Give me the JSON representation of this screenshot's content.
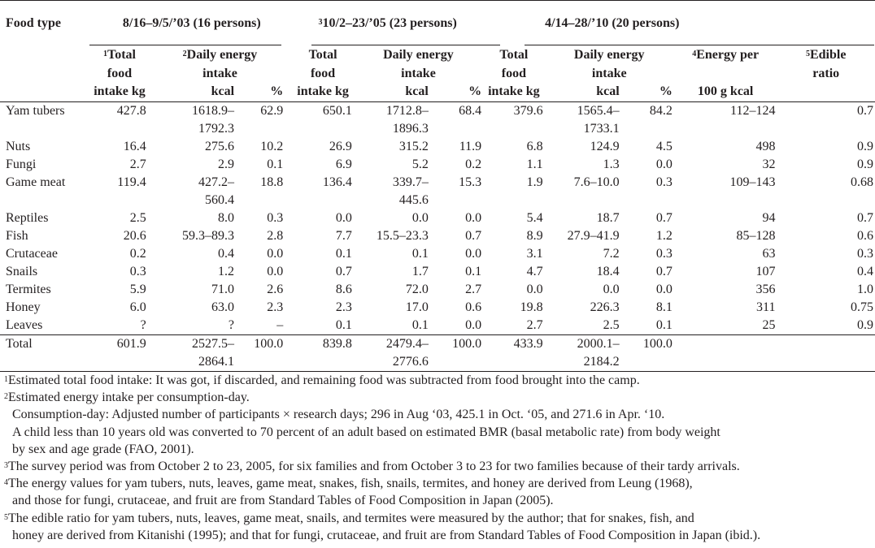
{
  "header": {
    "food_type": "Food type",
    "period1": "8/16–9/5/’03 (16 persons)",
    "period2_sup": "3",
    "period2": "10/2–23/’05 (23 persons)",
    "period3": "4/14–28/’10 (20 persons)",
    "total_l1": "Total",
    "total_l2": "food",
    "total_l3": "intake kg",
    "total_sup": "1",
    "energy_l1": "Daily energy",
    "energy_l2": "intake",
    "energy_sup": "2",
    "kcal": "kcal",
    "pct": "%",
    "energy100_sup": "4",
    "energy100_l1": "Energy per",
    "energy100_l3": "100 g kcal",
    "edible_sup": "5",
    "edible_l1": "Edible",
    "edible_l2": "ratio"
  },
  "rows": [
    {
      "food": "Yam tubers",
      "a_total": "427.8",
      "a_kcal": "1618.9–",
      "a_kcal2": "1792.3",
      "a_pct": "62.9",
      "b_total": "650.1",
      "b_kcal": "1712.8–",
      "b_kcal2": "1896.3",
      "b_pct": "68.4",
      "c_total": "379.6",
      "c_kcal": "1565.4–",
      "c_kcal2": "1733.1",
      "c_pct": "84.2",
      "energy": "112–124",
      "edible": "0.7"
    },
    {
      "food": "Nuts",
      "a_total": "16.4",
      "a_kcal": "275.6",
      "a_pct": "10.2",
      "b_total": "26.9",
      "b_kcal": "315.2",
      "b_pct": "11.9",
      "c_total": "6.8",
      "c_kcal": "124.9",
      "c_pct": "4.5",
      "energy": "498",
      "edible": "0.9"
    },
    {
      "food": "Fungi",
      "a_total": "2.7",
      "a_kcal": "2.9",
      "a_pct": "0.1",
      "b_total": "6.9",
      "b_kcal": "5.2",
      "b_pct": "0.2",
      "c_total": "1.1",
      "c_kcal": "1.3",
      "c_pct": "0.0",
      "energy": "32",
      "edible": "0.9"
    },
    {
      "food": "Game meat",
      "a_total": "119.4",
      "a_kcal": "427.2–",
      "a_kcal2": "560.4",
      "a_pct": "18.8",
      "b_total": "136.4",
      "b_kcal": "339.7–",
      "b_kcal2": "445.6",
      "b_pct": "15.3",
      "c_total": "1.9",
      "c_kcal": "7.6–10.0",
      "c_pct": "0.3",
      "energy": "109–143",
      "edible": "0.68"
    },
    {
      "food": "Reptiles",
      "a_total": "2.5",
      "a_kcal": "8.0",
      "a_pct": "0.3",
      "b_total": "0.0",
      "b_kcal": "0.0",
      "b_pct": "0.0",
      "c_total": "5.4",
      "c_kcal": "18.7",
      "c_pct": "0.7",
      "energy": "94",
      "edible": "0.7"
    },
    {
      "food": "Fish",
      "a_total": "20.6",
      "a_kcal": "59.3–89.3",
      "a_pct": "2.8",
      "b_total": "7.7",
      "b_kcal": "15.5–23.3",
      "b_pct": "0.7",
      "c_total": "8.9",
      "c_kcal": "27.9–41.9",
      "c_pct": "1.2",
      "energy": "85–128",
      "edible": "0.6"
    },
    {
      "food": "Crutaceae",
      "a_total": "0.2",
      "a_kcal": "0.4",
      "a_pct": "0.0",
      "b_total": "0.1",
      "b_kcal": "0.1",
      "b_pct": "0.0",
      "c_total": "3.1",
      "c_kcal": "7.2",
      "c_pct": "0.3",
      "energy": "63",
      "edible": "0.3"
    },
    {
      "food": "Snails",
      "a_total": "0.3",
      "a_kcal": "1.2",
      "a_pct": "0.0",
      "b_total": "0.7",
      "b_kcal": "1.7",
      "b_pct": "0.1",
      "c_total": "4.7",
      "c_kcal": "18.4",
      "c_pct": "0.7",
      "energy": "107",
      "edible": "0.4"
    },
    {
      "food": "Termites",
      "a_total": "5.9",
      "a_kcal": "71.0",
      "a_pct": "2.6",
      "b_total": "8.6",
      "b_kcal": "72.0",
      "b_pct": "2.7",
      "c_total": "0.0",
      "c_kcal": "0.0",
      "c_pct": "0.0",
      "energy": "356",
      "edible": "1.0"
    },
    {
      "food": "Honey",
      "a_total": "6.0",
      "a_kcal": "63.0",
      "a_pct": "2.3",
      "b_total": "2.3",
      "b_kcal": "17.0",
      "b_pct": "0.6",
      "c_total": "19.8",
      "c_kcal": "226.3",
      "c_pct": "8.1",
      "energy": "311",
      "edible": "0.75"
    },
    {
      "food": "Leaves",
      "a_total": "?",
      "a_kcal": "?",
      "a_pct": "–",
      "b_total": "0.1",
      "b_kcal": "0.1",
      "b_pct": "0.0",
      "c_total": "2.7",
      "c_kcal": "2.5",
      "c_pct": "0.1",
      "energy": "25",
      "edible": "0.9"
    }
  ],
  "total": {
    "food": "Total",
    "a_total": "601.9",
    "a_kcal": "2527.5–",
    "a_kcal2": "2864.1",
    "a_pct": "100.0",
    "b_total": "839.8",
    "b_kcal": "2479.4–",
    "b_kcal2": "2776.6",
    "b_pct": "100.0",
    "c_total": "433.9",
    "c_kcal": "2000.1–",
    "c_kcal2": "2184.2",
    "c_pct": "100.0"
  },
  "notes": {
    "n1_sup": "1",
    "n1": "Estimated total food intake: It was got, if discarded, and remaining food was subtracted from food brought into the camp.",
    "n2_sup": "2",
    "n2": "Estimated energy intake per consumption-day.",
    "n2b": "Consumption-day: Adjusted number of participants × research days; 296 in Aug ‘03, 425.1 in Oct. ‘05, and 271.6 in Apr. ‘10.",
    "n2c": "A child less than 10 years old was converted to 70 percent of an adult based on estimated BMR (basal metabolic rate) from body weight",
    "n2d": "by sex and age grade (FAO, 2001).",
    "n3_sup": "3",
    "n3": "The survey period was from October 2 to 23, 2005, for six families and from October 3 to 23 for two families because of their tardy arrivals.",
    "n4_sup": "4",
    "n4": "The energy values for yam tubers, nuts, leaves, game meat, snakes, fish, snails, termites, and honey are derived from Leung (1968),",
    "n4b": "and those for fungi, crutaceae, and fruit are from Standard Tables of Food Composition in Japan (2005).",
    "n5_sup": "5",
    "n5": "The edible ratio for yam tubers, nuts, leaves, game meat, snails, and termites were measured by the author; that for snakes, fish, and",
    "n5b": "honey are derived from Kitanishi (1995); and that for fungi, crutaceae, and fruit are from Standard Tables of Food Composition in Japan (ibid.)."
  }
}
